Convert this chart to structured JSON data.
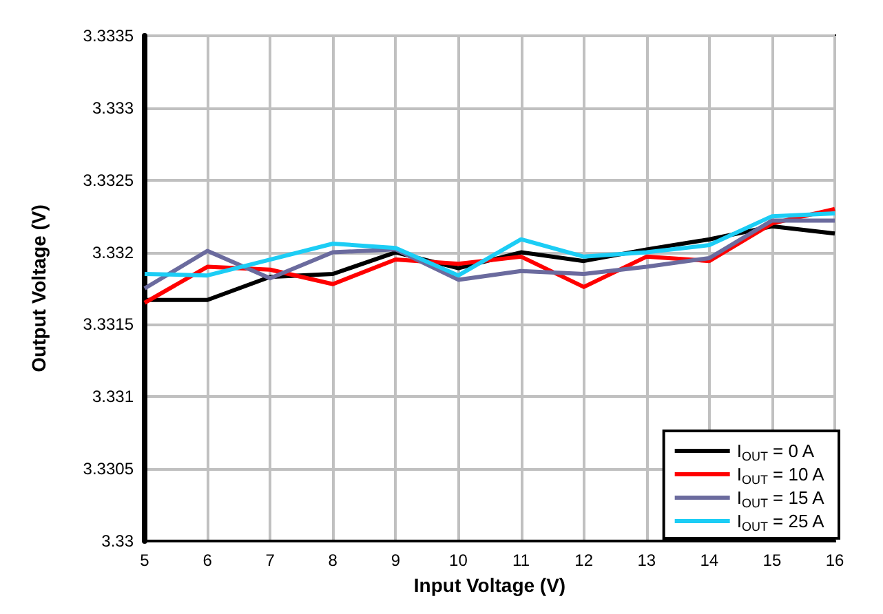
{
  "chart_data": {
    "type": "line",
    "xlabel": "Input Voltage (V)",
    "ylabel": "Output Voltage (V)",
    "x": [
      5,
      6,
      7,
      8,
      9,
      10,
      11,
      12,
      13,
      14,
      15,
      16
    ],
    "series": [
      {
        "name": "I$_{OUT}$ = 0 A",
        "color": "#000000",
        "values": [
          3.33167,
          3.33167,
          3.33183,
          3.33185,
          3.332,
          3.33189,
          3.332,
          3.33194,
          3.33202,
          3.33209,
          3.33218,
          3.33213
        ]
      },
      {
        "name": "I$_{OUT}$ = 10 A",
        "color": "#ff0000",
        "values": [
          3.33165,
          3.3319,
          3.33188,
          3.33178,
          3.33195,
          3.33192,
          3.33197,
          3.33176,
          3.33197,
          3.33194,
          3.3322,
          3.3323
        ]
      },
      {
        "name": "I$_{OUT}$ = 15 A",
        "color": "#6b6b9e",
        "values": [
          3.33175,
          3.33201,
          3.33182,
          3.332,
          3.33202,
          3.33181,
          3.33187,
          3.33185,
          3.3319,
          3.33196,
          3.33222,
          3.33222
        ]
      },
      {
        "name": "I$_{OUT}$ = 25 A",
        "color": "#1ccdf5",
        "values": [
          3.33185,
          3.33184,
          3.33195,
          3.33206,
          3.33203,
          3.33184,
          3.33209,
          3.33197,
          3.332,
          3.33205,
          3.33225,
          3.33227
        ]
      }
    ],
    "xlim": [
      5,
      16
    ],
    "xticks": [
      5,
      6,
      7,
      8,
      9,
      10,
      11,
      12,
      13,
      14,
      15,
      16
    ],
    "ylim": [
      3.33,
      3.3335
    ],
    "yticks": [
      3.33,
      3.3305,
      3.331,
      3.3315,
      3.332,
      3.3325,
      3.333,
      3.3335
    ],
    "grid": true,
    "legend": "bottom right",
    "marker": "none",
    "line_style": "solid"
  }
}
